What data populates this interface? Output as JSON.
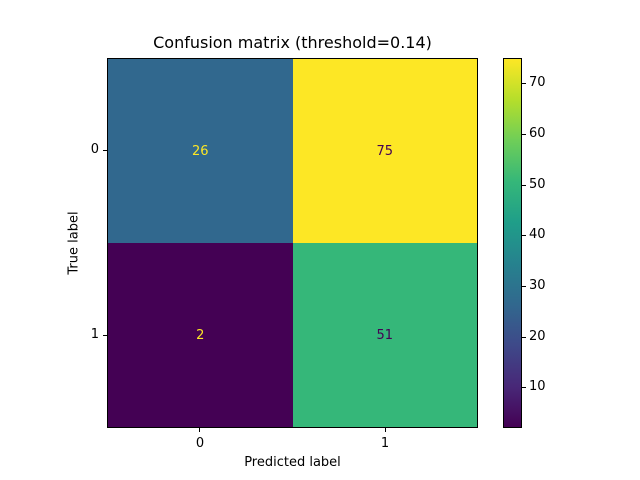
{
  "title": "Confusion matrix (threshold=0.14)",
  "axes": {
    "xlabel": "Predicted label",
    "ylabel": "True label",
    "x_ticks": [
      "0",
      "1"
    ],
    "y_ticks": [
      "0",
      "1"
    ]
  },
  "cells": [
    {
      "row": 0,
      "col": 0,
      "value": "26",
      "bg": "#31688e",
      "fg": "#fde725"
    },
    {
      "row": 0,
      "col": 1,
      "value": "75",
      "bg": "#fde725",
      "fg": "#440154"
    },
    {
      "row": 1,
      "col": 0,
      "value": "2",
      "bg": "#440154",
      "fg": "#fde725"
    },
    {
      "row": 1,
      "col": 1,
      "value": "51",
      "bg": "#35b779",
      "fg": "#440154"
    }
  ],
  "colorbar": {
    "vmin": 2,
    "vmax": 75,
    "ticks": [
      10,
      20,
      30,
      40,
      50,
      60,
      70
    ],
    "gradient": [
      "#440154",
      "#482878",
      "#3e4989",
      "#31688e",
      "#26828e",
      "#1f9e89",
      "#35b779",
      "#6ece58",
      "#b5de2b",
      "#fde725"
    ]
  },
  "chart_data": {
    "type": "heatmap",
    "title": "Confusion matrix (threshold=0.14)",
    "xlabel": "Predicted label",
    "ylabel": "True label",
    "x_categories": [
      "0",
      "1"
    ],
    "y_categories": [
      "0",
      "1"
    ],
    "matrix": [
      [
        26,
        75
      ],
      [
        2,
        51
      ]
    ],
    "colormap": "viridis",
    "vmin": 2,
    "vmax": 75,
    "colorbar_ticks": [
      10,
      20,
      30,
      40,
      50,
      60,
      70
    ],
    "legend_position": "right-colorbar",
    "grid": false
  }
}
